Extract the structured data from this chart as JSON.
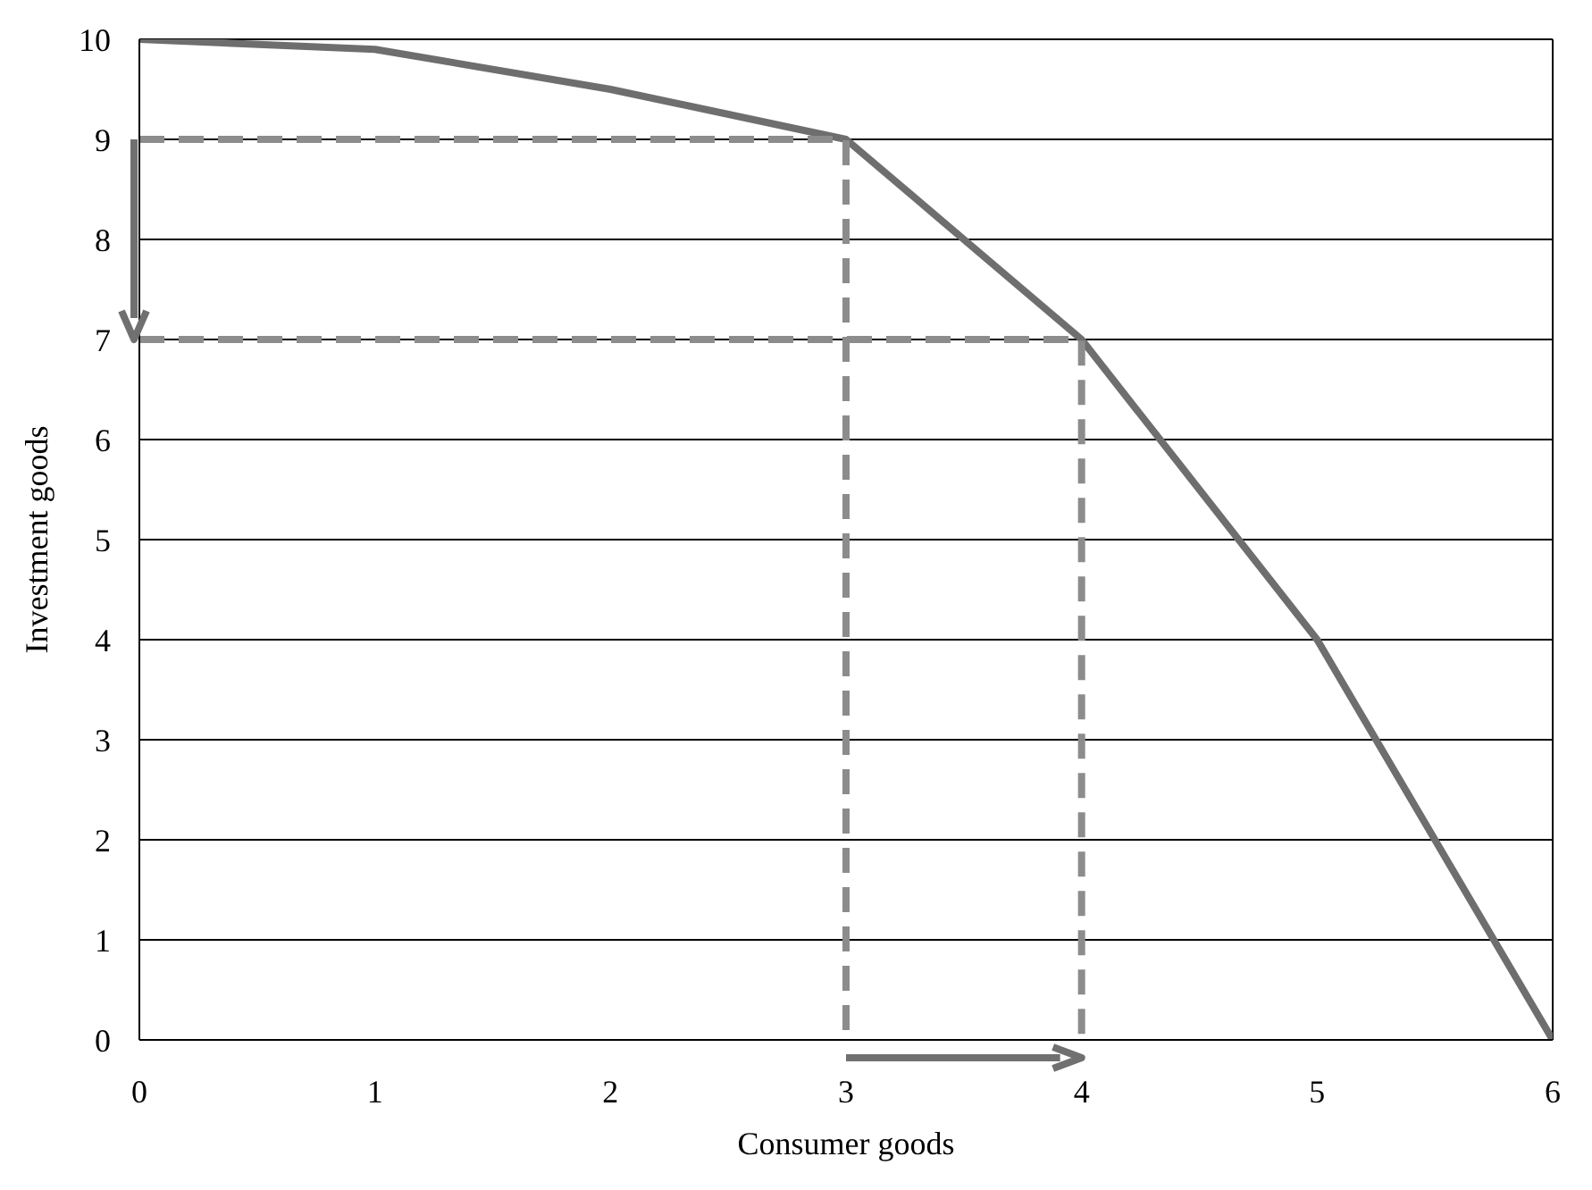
{
  "chart_data": {
    "type": "line",
    "xlabel": "Consumer goods",
    "ylabel": "Investment goods",
    "xlim": [
      0,
      6
    ],
    "xticks": [
      0,
      1,
      2,
      3,
      4,
      5,
      6
    ],
    "ylim": [
      0,
      10
    ],
    "yticks": [
      0,
      1,
      2,
      3,
      4,
      5,
      6,
      7,
      8,
      9,
      10
    ],
    "grid": "y",
    "legend": false,
    "marker": "none",
    "series": [
      {
        "color": "#6e6e6e",
        "x": [
          0,
          1,
          2,
          3,
          4,
          5,
          6
        ],
        "values": [
          10,
          9.9,
          9.5,
          9,
          7,
          4,
          0
        ],
        "line_style": "solid"
      },
      {
        "color": "#8c8c8c",
        "x": [
          0,
          3,
          3
        ],
        "values": [
          9,
          9,
          0
        ],
        "line_style": "dashed"
      },
      {
        "color": "#8c8c8c",
        "x": [
          0,
          4,
          4
        ],
        "values": [
          7,
          7,
          0
        ],
        "line_style": "dashed"
      }
    ]
  }
}
